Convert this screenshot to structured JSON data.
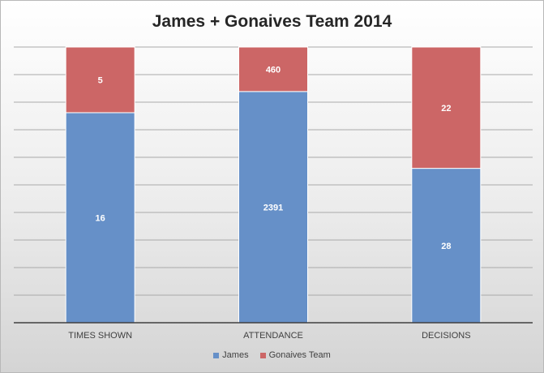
{
  "chart_data": {
    "type": "bar",
    "stacked": true,
    "normalized": true,
    "title": "James + Gonaives Team 2014",
    "categories": [
      "TIMES SHOWN",
      "ATTENDANCE",
      "DECISIONS"
    ],
    "series": [
      {
        "name": "James",
        "values": [
          16,
          2391,
          28
        ],
        "color": "#6690c8"
      },
      {
        "name": "Gonaives Team",
        "values": [
          5,
          460,
          22
        ],
        "color": "#cc6666"
      }
    ],
    "ylim": [
      0,
      1
    ],
    "grid": true,
    "legend": "bottom"
  }
}
